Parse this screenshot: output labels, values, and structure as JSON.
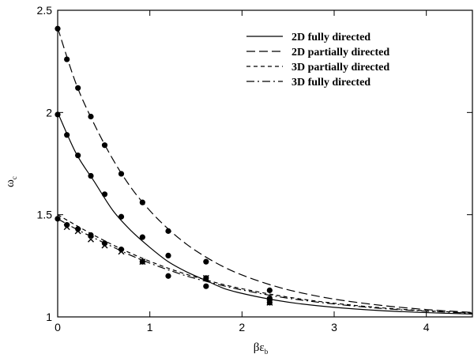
{
  "chart_data": {
    "type": "line",
    "xlabel": "βε",
    "xlabel_sub": "b",
    "ylabel": "ω",
    "ylabel_sub": "c",
    "xlim": [
      0,
      4.5
    ],
    "ylim": [
      1,
      2.5
    ],
    "xticks": [
      0,
      1,
      2,
      3,
      4
    ],
    "xtick_labels": [
      "0",
      "1",
      "2",
      "3",
      "4"
    ],
    "yticks": [
      1,
      1.5,
      2,
      2.5
    ],
    "ytick_labels": [
      "1",
      "1.5",
      "2",
      "2.5"
    ],
    "grid": false,
    "legend_position": "top-right",
    "series": [
      {
        "name": "2D fully directed",
        "dash": "solid",
        "curve": {
          "x": [
            0,
            0.2,
            0.4,
            0.6,
            0.8,
            1.0,
            1.2,
            1.4,
            1.6,
            1.8,
            2.0,
            2.3,
            2.6,
            3.0,
            3.5,
            4.0,
            4.5
          ],
          "y": [
            2.0,
            1.8,
            1.66,
            1.52,
            1.42,
            1.34,
            1.27,
            1.22,
            1.18,
            1.14,
            1.115,
            1.087,
            1.066,
            1.047,
            1.031,
            1.021,
            1.014
          ]
        },
        "points": {
          "marker": "circle",
          "x": [
            0,
            0.1,
            0.22,
            0.36,
            0.51,
            0.69,
            0.92,
            1.2,
            1.61,
            2.3
          ],
          "y": [
            1.99,
            1.89,
            1.79,
            1.69,
            1.6,
            1.49,
            1.39,
            1.3,
            1.19,
            1.09
          ]
        }
      },
      {
        "name": "2D partially directed",
        "dash": "long-dash",
        "curve": {
          "x": [
            0,
            0.2,
            0.4,
            0.6,
            0.8,
            1.0,
            1.2,
            1.4,
            1.6,
            1.8,
            2.0,
            2.3,
            2.6,
            3.0,
            3.5,
            4.0,
            4.5
          ],
          "y": [
            2.414,
            2.14,
            1.94,
            1.77,
            1.63,
            1.52,
            1.43,
            1.355,
            1.295,
            1.245,
            1.205,
            1.158,
            1.122,
            1.087,
            1.057,
            1.036,
            1.022
          ]
        },
        "points": {
          "marker": "circle",
          "x": [
            0,
            0.1,
            0.22,
            0.36,
            0.51,
            0.69,
            0.92,
            1.2,
            1.61,
            2.3
          ],
          "y": [
            2.41,
            2.26,
            2.12,
            1.98,
            1.84,
            1.7,
            1.56,
            1.42,
            1.27,
            1.13
          ]
        }
      },
      {
        "name": "3D partially directed",
        "dash": "short-dash",
        "curve": {
          "x": [
            0,
            0.2,
            0.4,
            0.6,
            0.8,
            1.0,
            1.2,
            1.4,
            1.6,
            1.8,
            2.0,
            2.3,
            2.6,
            3.0,
            3.5,
            4.0,
            4.5
          ],
          "y": [
            1.5,
            1.448,
            1.398,
            1.352,
            1.31,
            1.272,
            1.238,
            1.208,
            1.182,
            1.158,
            1.138,
            1.112,
            1.09,
            1.067,
            1.045,
            1.03,
            1.02
          ]
        },
        "points": {
          "marker": "cross",
          "x": [
            0.1,
            0.22,
            0.36,
            0.51,
            0.69,
            0.92,
            1.61,
            2.3
          ],
          "y": [
            1.44,
            1.42,
            1.38,
            1.35,
            1.32,
            1.27,
            1.19,
            1.07
          ]
        }
      },
      {
        "name": "3D fully directed",
        "dash": "dash-dot",
        "curve": {
          "x": [
            0,
            0.2,
            0.4,
            0.6,
            0.8,
            1.0,
            1.2,
            1.4,
            1.6,
            1.8,
            2.0,
            2.3,
            2.6,
            3.0,
            3.5,
            4.0,
            4.5
          ],
          "y": [
            1.48,
            1.43,
            1.385,
            1.342,
            1.3,
            1.263,
            1.23,
            1.2,
            1.175,
            1.152,
            1.132,
            1.106,
            1.085,
            1.063,
            1.042,
            1.028,
            1.018
          ]
        },
        "points": {
          "marker": "circle",
          "x": [
            0,
            0.1,
            0.22,
            0.36,
            0.51,
            0.69,
            0.92,
            1.2,
            1.61,
            2.3
          ],
          "y": [
            1.48,
            1.45,
            1.43,
            1.4,
            1.36,
            1.33,
            1.27,
            1.2,
            1.15,
            1.07
          ]
        }
      }
    ]
  }
}
